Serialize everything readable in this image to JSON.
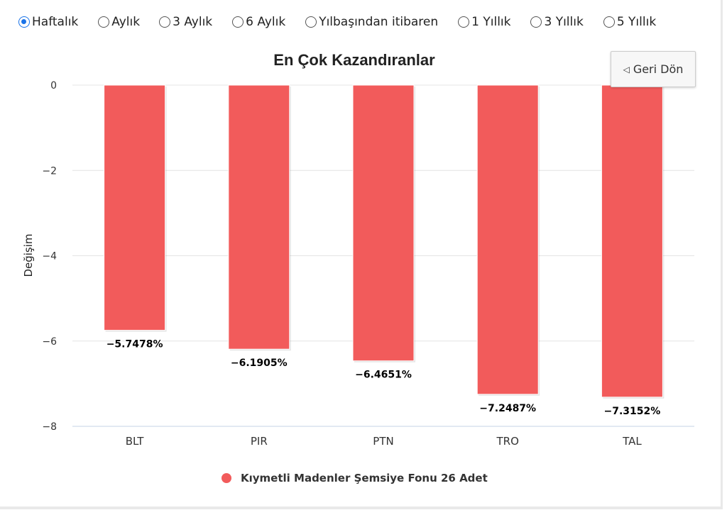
{
  "range_options": [
    {
      "label": "Haftalık",
      "checked": true
    },
    {
      "label": "Aylık",
      "checked": false
    },
    {
      "label": "3 Aylık",
      "checked": false
    },
    {
      "label": "6 Aylık",
      "checked": false
    },
    {
      "label": "Yılbaşından itibaren",
      "checked": false
    },
    {
      "label": "1 Yıllık",
      "checked": false
    },
    {
      "label": "3 Yıllık",
      "checked": false
    },
    {
      "label": "5 Yıllık",
      "checked": false
    }
  ],
  "back_button": {
    "icon": "back-triangle-icon",
    "label": "Geri Dön"
  },
  "chart_data": {
    "type": "bar",
    "title": "En Çok Kazandıranlar",
    "xlabel": "",
    "ylabel": "Değişim",
    "categories": [
      "BLT",
      "PIR",
      "PTN",
      "TRO",
      "TAL"
    ],
    "series": [
      {
        "name": "Kıymetli Madenler Şemsiye Fonu 26 Adet",
        "values": [
          -5.7478,
          -6.1905,
          -6.4651,
          -7.2487,
          -7.3152
        ],
        "data_labels": [
          "−5.7478%",
          "−6.1905%",
          "−6.4651%",
          "−7.2487%",
          "−7.3152%"
        ],
        "color": "#f25b5b"
      }
    ],
    "ylim": [
      -8,
      0
    ],
    "yticks": [
      0,
      -2,
      -4,
      -6,
      -8
    ],
    "ytick_labels": [
      "0",
      "−2",
      "−4",
      "−6",
      "−8"
    ],
    "grid": true,
    "legend": "bottom-center"
  }
}
